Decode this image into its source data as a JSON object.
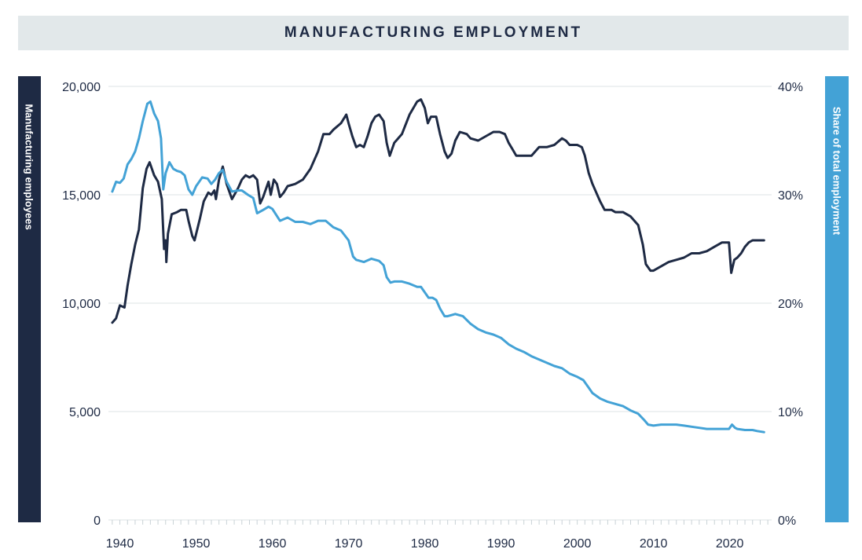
{
  "chart_data": {
    "type": "line",
    "title": "MANUFACTURING EMPLOYMENT",
    "ylabel_left": "Manufacturing employees",
    "ylabel_right": "Share of total employment",
    "x_ticks": [
      "1940",
      "1950",
      "1960",
      "1970",
      "1980",
      "1990",
      "2000",
      "2010",
      "2020"
    ],
    "y_left_ticks": [
      "0",
      "5,000",
      "10,000",
      "15,000",
      "20,000"
    ],
    "y_right_ticks": [
      "0%",
      "10%",
      "20%",
      "30%",
      "40%"
    ],
    "xlim": [
      1938.5,
      2025.5
    ],
    "ylim_left": [
      0,
      20000
    ],
    "ylim_right": [
      0,
      40
    ],
    "grid": true,
    "colors": {
      "employees": "#1e2a44",
      "share": "#43a2d6",
      "grid": "#dde3e6",
      "title_bg": "#e2e8ea"
    },
    "series": [
      {
        "axis": "left",
        "color": "#1e2a44",
        "points": [
          [
            1939.0,
            9100
          ],
          [
            1939.5,
            9300
          ],
          [
            1940.0,
            9900
          ],
          [
            1940.6,
            9800
          ],
          [
            1941.0,
            10800
          ],
          [
            1941.5,
            11800
          ],
          [
            1942.0,
            12700
          ],
          [
            1942.5,
            13400
          ],
          [
            1943.0,
            15300
          ],
          [
            1943.5,
            16200
          ],
          [
            1943.9,
            16500
          ],
          [
            1944.5,
            15900
          ],
          [
            1945.0,
            15600
          ],
          [
            1945.5,
            14800
          ],
          [
            1945.8,
            12500
          ],
          [
            1946.0,
            12900
          ],
          [
            1946.1,
            11900
          ],
          [
            1946.3,
            13200
          ],
          [
            1946.8,
            14100
          ],
          [
            1947.5,
            14200
          ],
          [
            1948.0,
            14300
          ],
          [
            1948.7,
            14300
          ],
          [
            1949.0,
            13800
          ],
          [
            1949.5,
            13100
          ],
          [
            1949.8,
            12900
          ],
          [
            1950.5,
            13900
          ],
          [
            1951.0,
            14700
          ],
          [
            1951.6,
            15100
          ],
          [
            1952.0,
            15000
          ],
          [
            1952.4,
            15200
          ],
          [
            1952.6,
            14800
          ],
          [
            1953.0,
            15700
          ],
          [
            1953.5,
            16300
          ],
          [
            1954.0,
            15500
          ],
          [
            1954.7,
            14800
          ],
          [
            1955.5,
            15300
          ],
          [
            1956.0,
            15700
          ],
          [
            1956.5,
            15900
          ],
          [
            1957.0,
            15800
          ],
          [
            1957.5,
            15900
          ],
          [
            1958.0,
            15700
          ],
          [
            1958.4,
            14600
          ],
          [
            1958.8,
            14900
          ],
          [
            1959.5,
            15600
          ],
          [
            1959.8,
            15000
          ],
          [
            1960.2,
            15700
          ],
          [
            1960.6,
            15500
          ],
          [
            1961.0,
            14900
          ],
          [
            1961.5,
            15100
          ],
          [
            1962.0,
            15400
          ],
          [
            1963.0,
            15500
          ],
          [
            1964.0,
            15700
          ],
          [
            1965.0,
            16200
          ],
          [
            1966.0,
            17000
          ],
          [
            1966.7,
            17800
          ],
          [
            1967.5,
            17800
          ],
          [
            1968.0,
            18000
          ],
          [
            1969.0,
            18300
          ],
          [
            1969.7,
            18700
          ],
          [
            1970.0,
            18300
          ],
          [
            1970.5,
            17700
          ],
          [
            1971.0,
            17200
          ],
          [
            1971.5,
            17300
          ],
          [
            1972.0,
            17200
          ],
          [
            1972.5,
            17700
          ],
          [
            1973.0,
            18300
          ],
          [
            1973.5,
            18600
          ],
          [
            1974.0,
            18700
          ],
          [
            1974.6,
            18400
          ],
          [
            1975.0,
            17400
          ],
          [
            1975.4,
            16800
          ],
          [
            1976.0,
            17400
          ],
          [
            1977.0,
            17800
          ],
          [
            1978.0,
            18700
          ],
          [
            1979.0,
            19300
          ],
          [
            1979.5,
            19400
          ],
          [
            1980.0,
            19000
          ],
          [
            1980.4,
            18300
          ],
          [
            1980.8,
            18600
          ],
          [
            1981.5,
            18600
          ],
          [
            1982.0,
            17800
          ],
          [
            1982.6,
            17000
          ],
          [
            1983.0,
            16700
          ],
          [
            1983.5,
            16900
          ],
          [
            1984.0,
            17500
          ],
          [
            1984.6,
            17900
          ],
          [
            1985.5,
            17800
          ],
          [
            1986.0,
            17600
          ],
          [
            1987.0,
            17500
          ],
          [
            1988.0,
            17700
          ],
          [
            1989.0,
            17900
          ],
          [
            1989.8,
            17900
          ],
          [
            1990.5,
            17800
          ],
          [
            1991.0,
            17400
          ],
          [
            1991.5,
            17100
          ],
          [
            1992.0,
            16800
          ],
          [
            1993.0,
            16800
          ],
          [
            1994.0,
            16800
          ],
          [
            1995.0,
            17200
          ],
          [
            1996.0,
            17200
          ],
          [
            1997.0,
            17300
          ],
          [
            1998.0,
            17600
          ],
          [
            1998.5,
            17500
          ],
          [
            1999.0,
            17300
          ],
          [
            2000.0,
            17300
          ],
          [
            2000.6,
            17200
          ],
          [
            2001.0,
            16800
          ],
          [
            2001.5,
            16000
          ],
          [
            2002.0,
            15500
          ],
          [
            2003.0,
            14700
          ],
          [
            2003.6,
            14300
          ],
          [
            2004.5,
            14300
          ],
          [
            2005.0,
            14200
          ],
          [
            2006.0,
            14200
          ],
          [
            2007.0,
            14000
          ],
          [
            2008.0,
            13600
          ],
          [
            2008.6,
            12700
          ],
          [
            2009.0,
            11800
          ],
          [
            2009.6,
            11500
          ],
          [
            2010.0,
            11500
          ],
          [
            2011.0,
            11700
          ],
          [
            2012.0,
            11900
          ],
          [
            2013.0,
            12000
          ],
          [
            2014.0,
            12100
          ],
          [
            2015.0,
            12300
          ],
          [
            2016.0,
            12300
          ],
          [
            2017.0,
            12400
          ],
          [
            2018.0,
            12600
          ],
          [
            2019.0,
            12800
          ],
          [
            2019.9,
            12800
          ],
          [
            2020.2,
            11400
          ],
          [
            2020.6,
            12000
          ],
          [
            2021.0,
            12100
          ],
          [
            2021.5,
            12300
          ],
          [
            2022.0,
            12600
          ],
          [
            2022.5,
            12800
          ],
          [
            2023.0,
            12900
          ],
          [
            2024.0,
            12900
          ],
          [
            2024.5,
            12900
          ]
        ]
      },
      {
        "axis": "right",
        "color": "#43a2d6",
        "points": [
          [
            1939.0,
            30.3
          ],
          [
            1939.5,
            31.2
          ],
          [
            1940.0,
            31.1
          ],
          [
            1940.5,
            31.5
          ],
          [
            1941.0,
            32.8
          ],
          [
            1941.5,
            33.3
          ],
          [
            1942.0,
            34.0
          ],
          [
            1942.5,
            35.2
          ],
          [
            1943.0,
            36.8
          ],
          [
            1943.6,
            38.4
          ],
          [
            1944.0,
            38.6
          ],
          [
            1944.5,
            37.5
          ],
          [
            1945.0,
            36.8
          ],
          [
            1945.4,
            35.2
          ],
          [
            1945.7,
            30.5
          ],
          [
            1946.0,
            32.0
          ],
          [
            1946.5,
            33.0
          ],
          [
            1947.0,
            32.4
          ],
          [
            1947.5,
            32.2
          ],
          [
            1948.0,
            32.1
          ],
          [
            1948.5,
            31.8
          ],
          [
            1949.0,
            30.5
          ],
          [
            1949.5,
            30.0
          ],
          [
            1950.0,
            30.8
          ],
          [
            1950.8,
            31.6
          ],
          [
            1951.5,
            31.5
          ],
          [
            1952.0,
            31.0
          ],
          [
            1952.5,
            31.4
          ],
          [
            1953.0,
            32.0
          ],
          [
            1953.5,
            32.3
          ],
          [
            1954.0,
            31.2
          ],
          [
            1954.7,
            30.3
          ],
          [
            1955.5,
            30.4
          ],
          [
            1956.0,
            30.4
          ],
          [
            1956.8,
            30.0
          ],
          [
            1957.5,
            29.7
          ],
          [
            1958.0,
            28.3
          ],
          [
            1958.8,
            28.6
          ],
          [
            1959.5,
            28.9
          ],
          [
            1960.0,
            28.7
          ],
          [
            1961.0,
            27.6
          ],
          [
            1962.0,
            27.9
          ],
          [
            1963.0,
            27.5
          ],
          [
            1964.0,
            27.5
          ],
          [
            1965.0,
            27.3
          ],
          [
            1966.0,
            27.6
          ],
          [
            1967.0,
            27.6
          ],
          [
            1968.0,
            27.0
          ],
          [
            1969.0,
            26.7
          ],
          [
            1970.0,
            25.8
          ],
          [
            1970.6,
            24.3
          ],
          [
            1971.0,
            24.0
          ],
          [
            1972.0,
            23.8
          ],
          [
            1973.0,
            24.1
          ],
          [
            1974.0,
            23.9
          ],
          [
            1974.6,
            23.5
          ],
          [
            1975.0,
            22.4
          ],
          [
            1975.5,
            21.9
          ],
          [
            1976.0,
            22.0
          ],
          [
            1977.0,
            22.0
          ],
          [
            1978.0,
            21.8
          ],
          [
            1979.0,
            21.5
          ],
          [
            1979.5,
            21.5
          ],
          [
            1980.0,
            21.0
          ],
          [
            1980.5,
            20.5
          ],
          [
            1981.0,
            20.5
          ],
          [
            1981.5,
            20.3
          ],
          [
            1982.0,
            19.5
          ],
          [
            1982.6,
            18.8
          ],
          [
            1983.0,
            18.8
          ],
          [
            1984.0,
            19.0
          ],
          [
            1985.0,
            18.8
          ],
          [
            1986.0,
            18.1
          ],
          [
            1987.0,
            17.6
          ],
          [
            1988.0,
            17.3
          ],
          [
            1989.0,
            17.1
          ],
          [
            1990.0,
            16.8
          ],
          [
            1991.0,
            16.2
          ],
          [
            1992.0,
            15.8
          ],
          [
            1993.0,
            15.5
          ],
          [
            1994.0,
            15.1
          ],
          [
            1995.0,
            14.8
          ],
          [
            1996.0,
            14.5
          ],
          [
            1997.0,
            14.2
          ],
          [
            1998.0,
            14.0
          ],
          [
            1999.0,
            13.5
          ],
          [
            2000.0,
            13.2
          ],
          [
            2000.8,
            12.9
          ],
          [
            2001.5,
            12.2
          ],
          [
            2002.0,
            11.7
          ],
          [
            2003.0,
            11.2
          ],
          [
            2004.0,
            10.9
          ],
          [
            2005.0,
            10.7
          ],
          [
            2006.0,
            10.5
          ],
          [
            2007.0,
            10.1
          ],
          [
            2008.0,
            9.8
          ],
          [
            2008.8,
            9.2
          ],
          [
            2009.3,
            8.8
          ],
          [
            2010.0,
            8.7
          ],
          [
            2011.0,
            8.8
          ],
          [
            2012.0,
            8.8
          ],
          [
            2013.0,
            8.8
          ],
          [
            2014.0,
            8.7
          ],
          [
            2015.0,
            8.6
          ],
          [
            2016.0,
            8.5
          ],
          [
            2017.0,
            8.4
          ],
          [
            2018.0,
            8.4
          ],
          [
            2019.0,
            8.4
          ],
          [
            2019.9,
            8.4
          ],
          [
            2020.3,
            8.8
          ],
          [
            2020.7,
            8.5
          ],
          [
            2021.0,
            8.4
          ],
          [
            2022.0,
            8.3
          ],
          [
            2023.0,
            8.3
          ],
          [
            2023.6,
            8.2
          ],
          [
            2024.5,
            8.1
          ]
        ]
      }
    ]
  }
}
